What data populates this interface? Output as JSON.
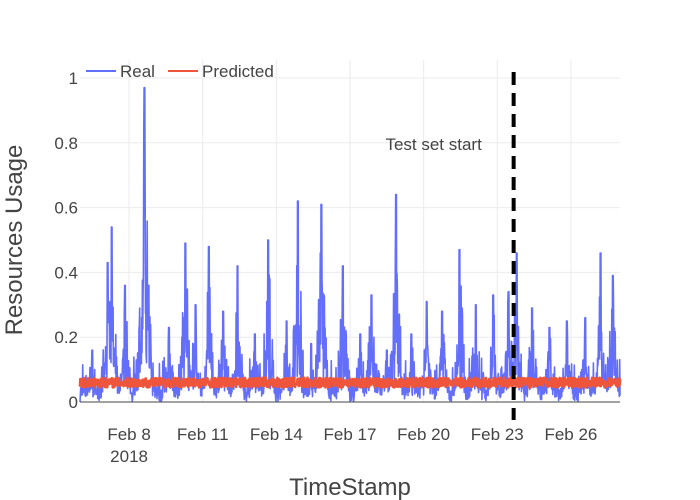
{
  "chart_data": {
    "type": "line",
    "xlabel": "TimeStamp",
    "ylabel": "Resources Usage",
    "x_range": [
      "2018-02-06",
      "2018-02-28"
    ],
    "ylim": [
      0,
      1
    ],
    "grid": true,
    "legend_placement": "top-left",
    "x_ticks": [
      {
        "date": "2018-02-08",
        "label": "Feb 8",
        "sublabel": "2018"
      },
      {
        "date": "2018-02-11",
        "label": "Feb 11"
      },
      {
        "date": "2018-02-14",
        "label": "Feb 14"
      },
      {
        "date": "2018-02-17",
        "label": "Feb 17"
      },
      {
        "date": "2018-02-20",
        "label": "Feb 20"
      },
      {
        "date": "2018-02-23",
        "label": "Feb 23"
      },
      {
        "date": "2018-02-26",
        "label": "Feb 26"
      }
    ],
    "y_ticks": [
      {
        "value": 0,
        "label": "0"
      },
      {
        "value": 0.2,
        "label": "0.2"
      },
      {
        "value": 0.4,
        "label": "0.4"
      },
      {
        "value": 0.6,
        "label": "0.6"
      },
      {
        "value": 0.8,
        "label": "0.8"
      },
      {
        "value": 1,
        "label": "1"
      }
    ],
    "series": [
      {
        "name": "Real",
        "color": "#636efa",
        "peaks": [
          {
            "x": "2018-02-06 12:00",
            "y": 0.16
          },
          {
            "x": "2018-02-07 03:00",
            "y": 0.43
          },
          {
            "x": "2018-02-07 07:00",
            "y": 0.54
          },
          {
            "x": "2018-02-07 20:00",
            "y": 0.36
          },
          {
            "x": "2018-02-08 10:00",
            "y": 0.23
          },
          {
            "x": "2018-02-08 15:00",
            "y": 0.97
          },
          {
            "x": "2018-02-08 19:00",
            "y": 0.36
          },
          {
            "x": "2018-02-09 15:00",
            "y": 0.23
          },
          {
            "x": "2018-02-10 07:00",
            "y": 0.49
          },
          {
            "x": "2018-02-10 17:00",
            "y": 0.3
          },
          {
            "x": "2018-02-11 06:00",
            "y": 0.48
          },
          {
            "x": "2018-02-11 20:00",
            "y": 0.28
          },
          {
            "x": "2018-02-12 10:00",
            "y": 0.42
          },
          {
            "x": "2018-02-13 03:00",
            "y": 0.21
          },
          {
            "x": "2018-02-13 16:00",
            "y": 0.5
          },
          {
            "x": "2018-02-14 10:00",
            "y": 0.25
          },
          {
            "x": "2018-02-14 21:00",
            "y": 0.62
          },
          {
            "x": "2018-02-15 10:00",
            "y": 0.18
          },
          {
            "x": "2018-02-15 20:00",
            "y": 0.61
          },
          {
            "x": "2018-02-16 17:00",
            "y": 0.42
          },
          {
            "x": "2018-02-17 10:00",
            "y": 0.21
          },
          {
            "x": "2018-02-17 21:00",
            "y": 0.33
          },
          {
            "x": "2018-02-18 12:00",
            "y": 0.16
          },
          {
            "x": "2018-02-18 21:00",
            "y": 0.64
          },
          {
            "x": "2018-02-19 12:00",
            "y": 0.21
          },
          {
            "x": "2018-02-20 03:00",
            "y": 0.31
          },
          {
            "x": "2018-02-20 18:00",
            "y": 0.28
          },
          {
            "x": "2018-02-21 11:00",
            "y": 0.47
          },
          {
            "x": "2018-02-22 03:00",
            "y": 0.3
          },
          {
            "x": "2018-02-22 20:00",
            "y": 0.33
          },
          {
            "x": "2018-02-23 11:00",
            "y": 0.34
          },
          {
            "x": "2018-02-23 19:00",
            "y": 0.46
          },
          {
            "x": "2018-02-24 10:00",
            "y": 0.29
          },
          {
            "x": "2018-02-25 03:00",
            "y": 0.23
          },
          {
            "x": "2018-02-25 20:00",
            "y": 0.25
          },
          {
            "x": "2018-02-26 14:00",
            "y": 0.26
          },
          {
            "x": "2018-02-27 05:00",
            "y": 0.46
          },
          {
            "x": "2018-02-27 17:00",
            "y": 0.39
          }
        ],
        "baseline_min": 0.0,
        "baseline_max": 0.06
      },
      {
        "name": "Predicted",
        "color": "#ef553b",
        "typical_value": 0.06,
        "range": [
          0.045,
          0.075
        ]
      }
    ],
    "annotations": [
      {
        "text": "Test set start",
        "x": "2018-02-23 16:00",
        "line_style": "dashed",
        "line_color": "#000000"
      }
    ]
  }
}
